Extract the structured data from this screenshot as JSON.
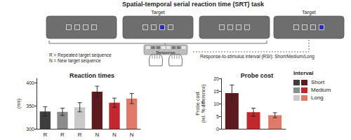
{
  "title": "Spatial-temporal serial reaction time (SRT) task",
  "diagram": {
    "target_label": "Target",
    "response_label": "Response",
    "notes": [
      "R = Repeated target sequence",
      "N = New target sequence"
    ],
    "rsi": "Response-to-stimulus interval (RSI): Short/Medium/Long"
  },
  "key": {
    "title": "Interval",
    "entries": [
      "Short",
      "Medium",
      "Long"
    ]
  },
  "chart_data": [
    {
      "type": "bar",
      "title": "Reaction times",
      "ylabel": "(ms)",
      "categories": [
        "R",
        "R",
        "R",
        "N",
        "N",
        "N"
      ],
      "values": [
        338,
        337,
        347,
        381,
        357,
        366
      ],
      "errors": [
        10,
        8,
        10,
        12,
        10,
        11
      ],
      "colors": [
        "#3d3d3d",
        "#8c8c8c",
        "#c9c9c9",
        "#5e1b1f",
        "#c1272d",
        "#e07a68"
      ],
      "ylim": [
        300,
        410
      ],
      "yticks": [
        300,
        350,
        400
      ],
      "grid": false
    },
    {
      "type": "bar",
      "title": "Probe cost",
      "ylabel": "Probe cost\n(rel. % difference)",
      "categories": [
        null,
        null,
        null
      ],
      "values": [
        14.2,
        6.6,
        5.4
      ],
      "errors": [
        3.2,
        1.6,
        1.0
      ],
      "colors": [
        "#5e1b1f",
        "#c1272d",
        "#e07a68"
      ],
      "ylim": [
        0,
        20
      ],
      "yticks": [
        0,
        5,
        10,
        15,
        20
      ],
      "grid": false
    }
  ]
}
